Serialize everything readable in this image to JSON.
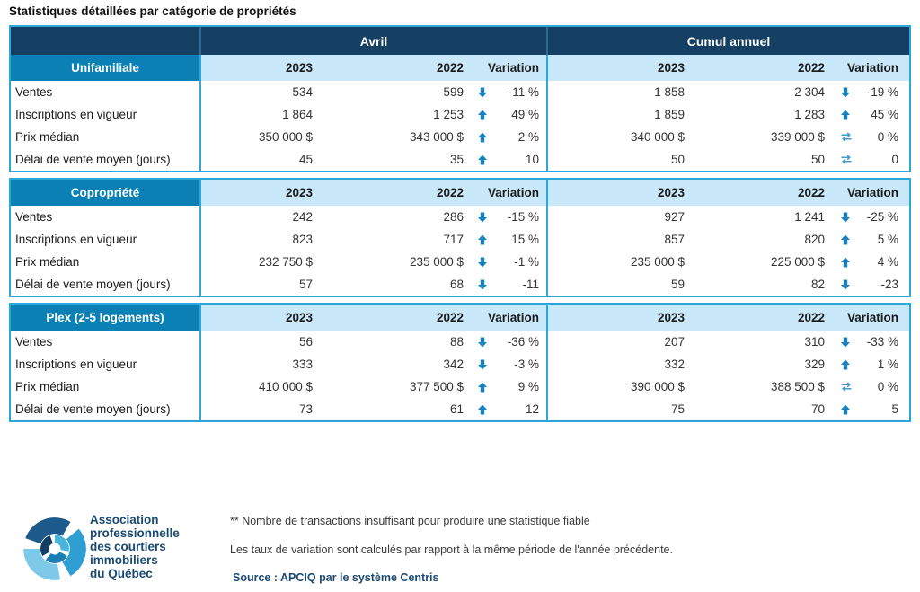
{
  "title": "Statistiques détaillées par catégorie de propriétés",
  "colors": {
    "navy": "#164063",
    "section_blue": "#0a80b5",
    "band_blue": "#c9e8f9",
    "border_blue": "#2ba7db",
    "arrow_blue": "#1781c2",
    "brand_navy": "#1a4a73"
  },
  "table": {
    "period_headers": [
      "Avril",
      "Cumul annuel"
    ],
    "column_headers": [
      "2023",
      "2022",
      "Variation"
    ],
    "sections": [
      {
        "name": "Unifamiliale",
        "rows": [
          {
            "label": "Ventes",
            "avril": {
              "y2023": "534",
              "y2022": "599",
              "icon": "down-arrow-icon",
              "variation": "-11 %"
            },
            "cumul": {
              "y2023": "1 858",
              "y2022": "2 304",
              "icon": "down-arrow-icon",
              "variation": "-19 %"
            }
          },
          {
            "label": "Inscriptions en vigueur",
            "avril": {
              "y2023": "1 864",
              "y2022": "1 253",
              "icon": "up-arrow-icon",
              "variation": "49 %"
            },
            "cumul": {
              "y2023": "1 859",
              "y2022": "1 283",
              "icon": "up-arrow-icon",
              "variation": "45 %"
            }
          },
          {
            "label": "Prix médian",
            "avril": {
              "y2023": "350 000 $",
              "y2022": "343 000 $",
              "icon": "up-arrow-icon",
              "variation": "2 %"
            },
            "cumul": {
              "y2023": "340 000 $",
              "y2022": "339 000 $",
              "icon": "stable-icon",
              "variation": "0 %"
            }
          },
          {
            "label": "Délai de vente moyen (jours)",
            "avril": {
              "y2023": "45",
              "y2022": "35",
              "icon": "up-arrow-icon",
              "variation": "10"
            },
            "cumul": {
              "y2023": "50",
              "y2022": "50",
              "icon": "stable-icon",
              "variation": "0"
            }
          }
        ]
      },
      {
        "name": "Copropriété",
        "rows": [
          {
            "label": "Ventes",
            "avril": {
              "y2023": "242",
              "y2022": "286",
              "icon": "down-arrow-icon",
              "variation": "-15 %"
            },
            "cumul": {
              "y2023": "927",
              "y2022": "1 241",
              "icon": "down-arrow-icon",
              "variation": "-25 %"
            }
          },
          {
            "label": "Inscriptions en vigueur",
            "avril": {
              "y2023": "823",
              "y2022": "717",
              "icon": "up-arrow-icon",
              "variation": "15 %"
            },
            "cumul": {
              "y2023": "857",
              "y2022": "820",
              "icon": "up-arrow-icon",
              "variation": "5 %"
            }
          },
          {
            "label": "Prix médian",
            "avril": {
              "y2023": "232 750 $",
              "y2022": "235 000 $",
              "icon": "down-arrow-icon",
              "variation": "-1 %"
            },
            "cumul": {
              "y2023": "235 000 $",
              "y2022": "225 000 $",
              "icon": "up-arrow-icon",
              "variation": "4 %"
            }
          },
          {
            "label": "Délai de vente moyen (jours)",
            "avril": {
              "y2023": "57",
              "y2022": "68",
              "icon": "down-arrow-icon",
              "variation": "-11"
            },
            "cumul": {
              "y2023": "59",
              "y2022": "82",
              "icon": "down-arrow-icon",
              "variation": "-23"
            }
          }
        ]
      },
      {
        "name": "Plex (2-5 logements)",
        "rows": [
          {
            "label": "Ventes",
            "avril": {
              "y2023": "56",
              "y2022": "88",
              "icon": "down-arrow-icon",
              "variation": "-36 %"
            },
            "cumul": {
              "y2023": "207",
              "y2022": "310",
              "icon": "down-arrow-icon",
              "variation": "-33 %"
            }
          },
          {
            "label": "Inscriptions en vigueur",
            "avril": {
              "y2023": "333",
              "y2022": "342",
              "icon": "down-arrow-icon",
              "variation": "-3 %"
            },
            "cumul": {
              "y2023": "332",
              "y2022": "329",
              "icon": "up-arrow-icon",
              "variation": "1 %"
            }
          },
          {
            "label": "Prix médian",
            "avril": {
              "y2023": "410 000 $",
              "y2022": "377 500 $",
              "icon": "up-arrow-icon",
              "variation": "9 %"
            },
            "cumul": {
              "y2023": "390 000 $",
              "y2022": "388 500 $",
              "icon": "stable-icon",
              "variation": "0 %"
            }
          },
          {
            "label": "Délai de vente moyen (jours)",
            "avril": {
              "y2023": "73",
              "y2022": "61",
              "icon": "up-arrow-icon",
              "variation": "12"
            },
            "cumul": {
              "y2023": "75",
              "y2022": "70",
              "icon": "up-arrow-icon",
              "variation": "5"
            }
          }
        ]
      }
    ]
  },
  "footer": {
    "note1": "** Nombre de transactions insuffisant pour produire une statistique fiable",
    "note2": "Les taux de variation sont calculés par rapport à la même période de l'année précédente.",
    "source": "Source : APCIQ par le système Centris",
    "logo_lines": [
      "Association",
      "professionnelle",
      "des courtiers",
      "immobiliers",
      "du Québec"
    ]
  }
}
